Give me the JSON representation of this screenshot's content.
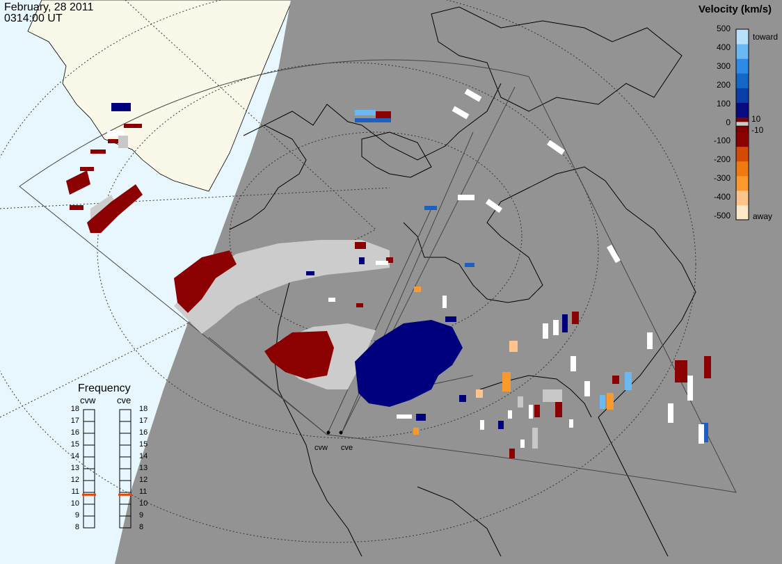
{
  "header": {
    "date": "February, 28 2011",
    "time": "0314:00 UT"
  },
  "colorbar": {
    "title": "Velocity (km/s)",
    "ticks": [
      "500",
      "400",
      "300",
      "200",
      "100",
      "10",
      "0",
      "-10",
      "-100",
      "-200",
      "-300",
      "-400",
      "-500"
    ],
    "toward_label": "toward",
    "away_label": "away",
    "colors": [
      "#fde8c8",
      "#fdc58a",
      "#fb9a2c",
      "#f07a10",
      "#d64a08",
      "#8b0000",
      "#7f0000",
      "#0a0a80",
      "#0a3ea8",
      "#1466c8",
      "#2c8be6",
      "#6ab9f2",
      "#b8e0fa"
    ]
  },
  "frequency": {
    "title": "Frequency",
    "radars": [
      "cvw",
      "cve"
    ],
    "scale": [
      "18",
      "17",
      "16",
      "15",
      "14",
      "13",
      "12",
      "11",
      "10",
      "9",
      "8"
    ],
    "values_mhz": [
      10.8,
      10.8
    ]
  },
  "map_labels": {
    "radar1": "cvw",
    "radar2": "cve"
  },
  "colors": {
    "land_night": "#9a9a9a",
    "land_day": "#faf8e8",
    "ocean_day": "#e8f6fe",
    "ground_scatter": "#cccccc",
    "away": "#8b0000",
    "toward": "#00007f"
  }
}
